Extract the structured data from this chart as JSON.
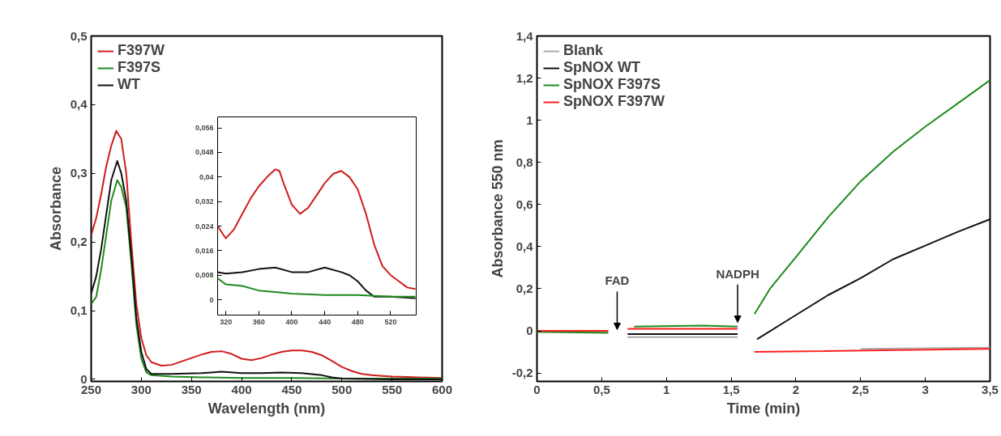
{
  "chart_data": [
    {
      "type": "line",
      "xlabel": "Wavelength (nm)",
      "ylabel": "Absorbance",
      "xlim": [
        250,
        600
      ],
      "ylim": [
        -0.003,
        0.5
      ],
      "xticks": [
        250,
        300,
        350,
        400,
        450,
        500,
        550,
        600
      ],
      "yticks": [
        0,
        {
          "value": 0.1,
          "label": "0,1"
        },
        {
          "value": 0.2,
          "label": "0,2"
        },
        {
          "value": 0.3,
          "label": "0,3"
        },
        {
          "value": 0.4,
          "label": "0,4"
        },
        {
          "value": 0.5,
          "label": "0,5"
        }
      ],
      "legend": "top left",
      "series": [
        {
          "name": "F397W",
          "color": "#d01c1c",
          "x": [
            250,
            255,
            260,
            265,
            270,
            275,
            280,
            285,
            290,
            295,
            300,
            305,
            310,
            320,
            330,
            340,
            350,
            360,
            370,
            380,
            390,
            400,
            410,
            420,
            430,
            440,
            450,
            460,
            470,
            480,
            490,
            500,
            510,
            520,
            530,
            540,
            550,
            575,
            600
          ],
          "values": [
            0.21,
            0.235,
            0.27,
            0.31,
            0.34,
            0.362,
            0.35,
            0.3,
            0.2,
            0.11,
            0.06,
            0.035,
            0.025,
            0.02,
            0.021,
            0.026,
            0.031,
            0.036,
            0.04,
            0.041,
            0.037,
            0.03,
            0.028,
            0.031,
            0.036,
            0.04,
            0.042,
            0.042,
            0.04,
            0.035,
            0.027,
            0.018,
            0.012,
            0.008,
            0.006,
            0.005,
            0.004,
            0.003,
            0.002
          ]
        },
        {
          "name": "F397S",
          "color": "#1f8a1f",
          "x": [
            250,
            255,
            260,
            265,
            270,
            276,
            280,
            285,
            290,
            295,
            300,
            305,
            310,
            330,
            360,
            400,
            450,
            500,
            550,
            600
          ],
          "values": [
            0.11,
            0.12,
            0.16,
            0.21,
            0.26,
            0.29,
            0.28,
            0.25,
            0.17,
            0.08,
            0.03,
            0.01,
            0.006,
            0.004,
            0.003,
            0.002,
            0.002,
            0.001,
            0.001,
            0.001
          ]
        },
        {
          "name": "WT",
          "color": "#111111",
          "x": [
            250,
            255,
            260,
            265,
            270,
            276,
            280,
            285,
            290,
            295,
            300,
            305,
            310,
            330,
            360,
            380,
            400,
            420,
            440,
            460,
            480,
            490,
            500,
            550,
            600
          ],
          "values": [
            0.125,
            0.15,
            0.19,
            0.24,
            0.29,
            0.318,
            0.3,
            0.26,
            0.18,
            0.09,
            0.04,
            0.015,
            0.008,
            0.008,
            0.009,
            0.011,
            0.009,
            0.009,
            0.01,
            0.009,
            0.006,
            0.003,
            0.001,
            0,
            0
          ]
        }
      ]
    },
    {
      "type": "line",
      "xlim": [
        310,
        551
      ],
      "ylim": [
        -0.005,
        0.0596
      ],
      "xticks": [
        320,
        360,
        400,
        440,
        480,
        520
      ],
      "yticks": [
        0,
        {
          "value": 0.008,
          "label": "0,008"
        },
        {
          "value": 0.016,
          "label": "0,016"
        },
        {
          "value": 0.024,
          "label": "0,024"
        },
        {
          "value": 0.032,
          "label": "0,032"
        },
        {
          "value": 0.04,
          "label": "0,04"
        },
        {
          "value": 0.048,
          "label": "0,048"
        },
        {
          "value": 0.056,
          "label": "0,056"
        }
      ],
      "series": [
        {
          "color": "#d01c1c",
          "x": [
            310,
            320,
            330,
            340,
            350,
            360,
            370,
            380,
            385,
            390,
            400,
            410,
            420,
            430,
            440,
            450,
            460,
            470,
            480,
            490,
            500,
            510,
            520,
            530,
            540,
            550
          ],
          "values": [
            0.024,
            0.02,
            0.023,
            0.028,
            0.033,
            0.037,
            0.04,
            0.0425,
            0.042,
            0.038,
            0.031,
            0.028,
            0.03,
            0.034,
            0.038,
            0.041,
            0.042,
            0.04,
            0.036,
            0.028,
            0.018,
            0.011,
            0.008,
            0.006,
            0.004,
            0.0035
          ]
        },
        {
          "color": "#111111",
          "x": [
            310,
            320,
            340,
            360,
            380,
            400,
            420,
            440,
            460,
            470,
            480,
            490,
            500,
            520,
            550
          ],
          "values": [
            0.009,
            0.0085,
            0.009,
            0.01,
            0.0105,
            0.009,
            0.009,
            0.0105,
            0.009,
            0.008,
            0.006,
            0.003,
            0.001,
            0.001,
            0.0005
          ]
        },
        {
          "color": "#1f8a1f",
          "x": [
            310,
            320,
            340,
            360,
            380,
            400,
            440,
            480,
            520,
            550
          ],
          "values": [
            0.007,
            0.005,
            0.0045,
            0.003,
            0.0025,
            0.002,
            0.0015,
            0.0015,
            0.001,
            0.001
          ]
        }
      ]
    },
    {
      "type": "line",
      "xlabel": "Time (min)",
      "ylabel": "Absorbance 550 nm",
      "xlim": [
        0,
        3.5
      ],
      "ylim": [
        -0.24,
        1.4
      ],
      "xticks": [
        0,
        {
          "value": 0.5,
          "label": "0,5"
        },
        1,
        {
          "value": 1.5,
          "label": "1,5"
        },
        2,
        {
          "value": 2.5,
          "label": "2,5"
        },
        3,
        {
          "value": 3.5,
          "label": "3,5"
        }
      ],
      "yticks": [
        {
          "value": -0.2,
          "label": "-0,2"
        },
        0,
        {
          "value": 0.2,
          "label": "0,2"
        },
        {
          "value": 0.4,
          "label": "0,4"
        },
        {
          "value": 0.6,
          "label": "0,6"
        },
        {
          "value": 0.8,
          "label": "0,8"
        },
        1,
        {
          "value": 1.2,
          "label": "1,2"
        },
        {
          "value": 1.4,
          "label": "1,4"
        }
      ],
      "legend": "top left",
      "annotations": [
        "FAD",
        {
          "text": "NADPH",
          "x": 1.55,
          "y": 0.04
        }
      ],
      "series": [
        {
          "name": "Blank",
          "color": "#aaaaaa",
          "x": [
            0,
            0.55,
            0.62,
            0.7,
            1.55,
            1.62,
            1.7,
            2.5,
            3.5
          ],
          "values": [
            -0.005,
            -0.005,
            null,
            -0.03,
            -0.03,
            null,
            null,
            -0.085,
            -0.08
          ]
        },
        {
          "name": "SpNOX WT",
          "color": "#111111",
          "x": [
            0,
            0.55,
            0.62,
            0.7,
            1.55,
            1.62,
            1.7,
            2.0,
            2.25,
            2.5,
            2.75,
            3.0,
            3.25,
            3.5
          ],
          "values": [
            0,
            0,
            null,
            -0.015,
            -0.015,
            null,
            -0.04,
            0.075,
            0.17,
            0.25,
            0.34,
            0.405,
            0.47,
            0.53
          ]
        },
        {
          "name": "SpNOX F397S",
          "color": "#1f8a1f",
          "x": [
            0,
            0.55,
            0.65,
            0.75,
            1.28,
            1.55,
            1.62,
            1.68,
            1.8,
            2.0,
            2.25,
            2.5,
            2.75,
            3.0,
            3.25,
            3.5
          ],
          "values": [
            -0.005,
            -0.01,
            null,
            0.02,
            0.025,
            0.02,
            null,
            0.08,
            0.2,
            0.35,
            0.54,
            0.71,
            0.85,
            0.97,
            1.08,
            1.19
          ]
        },
        {
          "name": "SpNOX F397W",
          "color": "#ff2020",
          "x": [
            0,
            0.55,
            0.62,
            0.7,
            1.55,
            1.62,
            1.68,
            3.5
          ],
          "values": [
            0,
            0,
            null,
            0.01,
            0.01,
            null,
            -0.1,
            -0.085
          ]
        }
      ]
    }
  ]
}
